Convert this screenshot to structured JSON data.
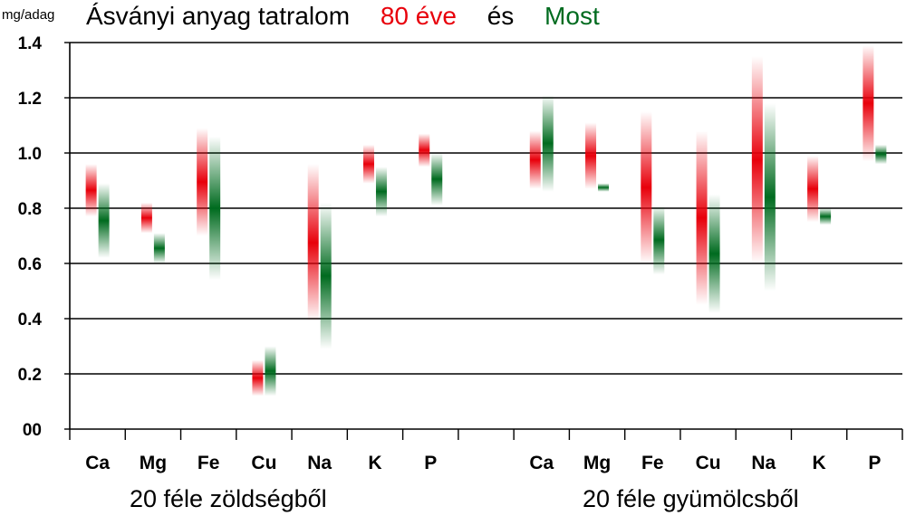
{
  "title": {
    "main": "Ásványi anyag tatralom",
    "then": "80 éve",
    "connector": "és",
    "now": "Most"
  },
  "unit_label": "mg/adag",
  "colors": {
    "then": "#e8000b",
    "now": "#006b1f",
    "grid": "#000000"
  },
  "chart_data": {
    "type": "range-bar",
    "ylim": [
      0,
      1.4
    ],
    "y_ticks": [
      "00",
      "0.2",
      "0.4",
      "0.6",
      "0.8",
      "1.0",
      "1.2",
      "1.4"
    ],
    "grid": true,
    "groups": [
      {
        "label": "20 féle zöldségből",
        "categories": [
          "Ca",
          "Mg",
          "Fe",
          "Cu",
          "Na",
          "K",
          "P"
        ]
      },
      {
        "label": "20 féle gyümölcsből",
        "categories": [
          "Ca",
          "Mg",
          "Fe",
          "Cu",
          "Na",
          "K",
          "P"
        ]
      }
    ],
    "series": [
      {
        "name": "80 éve",
        "ranges": [
          [
            0.77,
            0.96
          ],
          [
            0.71,
            0.82
          ],
          [
            0.7,
            1.09
          ],
          [
            0.12,
            0.25
          ],
          [
            0.39,
            0.96
          ],
          [
            0.89,
            1.03
          ],
          [
            0.95,
            1.07
          ],
          [
            0.87,
            1.08
          ],
          [
            0.87,
            1.11
          ],
          [
            0.6,
            1.15
          ],
          [
            0.45,
            1.08
          ],
          [
            0.6,
            1.35
          ],
          [
            0.75,
            0.99
          ],
          [
            0.97,
            1.39
          ]
        ]
      },
      {
        "name": "Most",
        "ranges": [
          [
            0.62,
            0.89
          ],
          [
            0.6,
            0.71
          ],
          [
            0.54,
            1.06
          ],
          [
            0.12,
            0.3
          ],
          [
            0.29,
            0.82
          ],
          [
            0.77,
            0.95
          ],
          [
            0.81,
            1.0
          ],
          [
            0.86,
            1.21
          ],
          [
            0.86,
            0.89
          ],
          [
            0.56,
            0.81
          ],
          [
            0.42,
            0.85
          ],
          [
            0.5,
            1.18
          ],
          [
            0.74,
            0.8
          ],
          [
            0.96,
            1.03
          ]
        ]
      }
    ]
  }
}
